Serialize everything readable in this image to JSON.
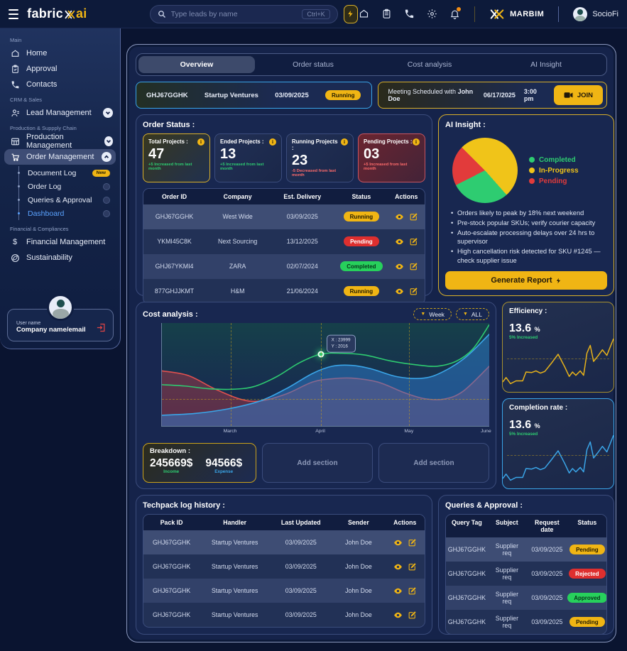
{
  "colors": {
    "yellow": "#f0b514",
    "green": "#2ecc71",
    "red": "#e23b3b",
    "blue": "#3aa5e8"
  },
  "topbar": {
    "logo_part1": "fabric",
    "logo_part2": "ai",
    "search": {
      "placeholder": "Type leads by name",
      "shortcut": "Ctrl+K"
    },
    "brand": "MARBIM",
    "account": "SocioFi"
  },
  "sidebar": {
    "section_labels": {
      "main": "Main",
      "crm": "CRM & Sales",
      "production": "Production & Suppply Chain",
      "financial": "Financial & Compliances"
    },
    "items": {
      "home": "Home",
      "approval": "Approval",
      "contacts": "Contacts",
      "lead": "Lead Management",
      "production": "Production Management",
      "order": "Order Management",
      "document_log": "Document Log",
      "document_badge": "New",
      "order_log": "Order Log",
      "queries": "Queries & Approval",
      "dashboard": "Dashboard",
      "financial": "Financial Management",
      "sustainability": "Sustainability"
    },
    "user_card": {
      "name": "User name",
      "company": "Company name/email"
    }
  },
  "tabs": [
    "Overview",
    "Order status",
    "Cost analysis",
    "AI Insight"
  ],
  "order_strip": {
    "order_id": "GHJ67GGHK",
    "company": "Startup Ventures",
    "date": "03/09/2025",
    "status": "Running",
    "status_color": "yellow"
  },
  "meeting": {
    "prefix": "Meeting Scheduled with",
    "person": "John Doe",
    "date": "06/17/2025",
    "time": "3:00 pm",
    "join_label": "JOIN"
  },
  "order_status": {
    "title": "Order Status :",
    "cards": [
      {
        "label": "Total Projects :",
        "value": "47",
        "note": "+5 Increased from last month",
        "note_color": "green",
        "style": "gold"
      },
      {
        "label": "Ended Projects :",
        "value": "13",
        "note": "+5 Increased from last month",
        "note_color": "green",
        "style": "plain"
      },
      {
        "label": "Running Projects :",
        "value": "23",
        "note": "-5 Decreased from last month",
        "note_color": "red",
        "style": "plain"
      },
      {
        "label": "Pending Projects :",
        "value": "03",
        "note": "+5 Increased from last month",
        "note_color": "red",
        "style": "danger"
      }
    ],
    "table": {
      "headers": [
        "Order ID",
        "Company",
        "Est. Delivery",
        "Status",
        "Actions"
      ],
      "rows": [
        {
          "order_id": "GHJ67GGHK",
          "company": "West Wide",
          "delivery": "03/09/2025",
          "status": "Running",
          "status_color": "yellow"
        },
        {
          "order_id": "YKMI45C8K",
          "company": "Next Sourcing",
          "delivery": "13/12/2025",
          "status": "Pending",
          "status_color": "red"
        },
        {
          "order_id": "GHJ67YKMI4",
          "company": "ZARA",
          "delivery": "02/07/2024",
          "status": "Completed",
          "status_color": "green"
        },
        {
          "order_id": "877GHJJKMT",
          "company": "H&M",
          "delivery": "21/06/2024",
          "status": "Running",
          "status_color": "yellow"
        }
      ]
    }
  },
  "ai_insight": {
    "title": "AI Insight :",
    "pie": {
      "type": "pie",
      "start_angle": 315,
      "slices": [
        {
          "label": "Completed",
          "value": 29,
          "color": "#2ecc71"
        },
        {
          "label": "In-Progress",
          "value": 51,
          "color": "#f0c419"
        },
        {
          "label": "Pending",
          "value": 20,
          "color": "#e23b3b"
        }
      ],
      "draw_order": [
        "In-Progress",
        "Completed",
        "Pending"
      ]
    },
    "bullets": [
      "Orders likely to peak by 18% next weekend",
      "Pre-stock popular SKUs; verify courier capacity",
      "Auto-escalate processing delays over 24 hrs to supervisor",
      "High cancellation risk detected for SKU #1245 — check supplier issue"
    ],
    "button_label": "Generate Report"
  },
  "cost_analysis": {
    "title": "Cost analysis :",
    "filters": [
      "Week",
      "ALL"
    ],
    "tooltip": {
      "line1": "X : 23999",
      "line2": "Y : 2016"
    },
    "chart_data": {
      "type": "area",
      "x_labels": [
        {
          "label": "March",
          "pos": 21
        },
        {
          "label": "April",
          "pos": 48.5
        },
        {
          "label": "May",
          "pos": 75.5
        },
        {
          "label": "June",
          "pos": 99
        }
      ],
      "y_ticks": [
        {
          "label": "25M $",
          "value": 25,
          "pos": 0
        },
        {
          "label": "15M $",
          "value": 15,
          "pos": 42
        },
        {
          "label": "10M $",
          "value": 10,
          "pos": 74
        },
        {
          "label": "7M $",
          "value": 7,
          "pos": 100
        }
      ],
      "grid_vlines": [
        21,
        48.5,
        75.5
      ],
      "grid_hline_value": 10,
      "marker": {
        "x": 48.5,
        "value": 17.8
      },
      "series": [
        {
          "name": "red",
          "color": "#e0504f",
          "fill": "rgba(190,60,70,0.42)",
          "points": [
            [
              0,
              14.3
            ],
            [
              8,
              13.6
            ],
            [
              16,
              11.6
            ],
            [
              24,
              10.0
            ],
            [
              30,
              9.8
            ],
            [
              38,
              10.8
            ],
            [
              46,
              12.6
            ],
            [
              52,
              13.1
            ],
            [
              58,
              13.2
            ],
            [
              66,
              12.6
            ],
            [
              74,
              11.0
            ],
            [
              80,
              10.1
            ],
            [
              86,
              10.0
            ],
            [
              92,
              11.2
            ],
            [
              100,
              15.0
            ]
          ]
        },
        {
          "name": "blue",
          "color": "#3aa5e8",
          "fill": "rgba(45,125,205,0.50)",
          "points": [
            [
              0,
              8.2
            ],
            [
              10,
              8.4
            ],
            [
              20,
              8.9
            ],
            [
              30,
              9.8
            ],
            [
              38,
              11.6
            ],
            [
              46,
              13.9
            ],
            [
              52,
              15.0
            ],
            [
              58,
              15.2
            ],
            [
              64,
              14.6
            ],
            [
              72,
              13.4
            ],
            [
              80,
              13.2
            ],
            [
              86,
              14.2
            ],
            [
              93,
              17.2
            ],
            [
              100,
              22.4
            ]
          ]
        },
        {
          "name": "green",
          "color": "#2ecc71",
          "fill": "none",
          "points": [
            [
              0,
              12.2
            ],
            [
              7,
              12.0
            ],
            [
              14,
              11.6
            ],
            [
              21,
              11.5
            ],
            [
              28,
              11.9
            ],
            [
              35,
              13.4
            ],
            [
              42,
              15.8
            ],
            [
              48.5,
              17.8
            ],
            [
              55,
              18.0
            ],
            [
              62,
              17.6
            ],
            [
              70,
              16.2
            ],
            [
              78,
              15.3
            ],
            [
              84,
              15.0
            ],
            [
              90,
              16.2
            ],
            [
              95,
              19.0
            ],
            [
              100,
              24.6
            ]
          ]
        }
      ]
    }
  },
  "efficiency": {
    "title": "Efficiency :",
    "value": "13.6",
    "unit": "%",
    "note": "5% Increased",
    "spark": {
      "type": "line",
      "color": "#e8b31a",
      "points": [
        [
          0,
          82
        ],
        [
          3,
          74
        ],
        [
          7,
          85
        ],
        [
          12,
          80
        ],
        [
          18,
          80
        ],
        [
          21,
          64
        ],
        [
          26,
          65
        ],
        [
          30,
          62
        ],
        [
          34,
          66
        ],
        [
          38,
          63
        ],
        [
          44,
          48
        ],
        [
          50,
          32
        ],
        [
          56,
          55
        ],
        [
          60,
          72
        ],
        [
          63,
          64
        ],
        [
          66,
          70
        ],
        [
          70,
          62
        ],
        [
          73,
          70
        ],
        [
          76,
          30
        ],
        [
          79,
          16
        ],
        [
          82,
          45
        ],
        [
          86,
          35
        ],
        [
          90,
          24
        ],
        [
          94,
          34
        ],
        [
          100,
          4
        ]
      ]
    }
  },
  "completion": {
    "title": "Completion rate :",
    "value": "13.6",
    "unit": "%",
    "note": "5% Increased",
    "spark": {
      "type": "line",
      "color": "#3aa5e8",
      "points": [
        [
          0,
          82
        ],
        [
          3,
          74
        ],
        [
          7,
          85
        ],
        [
          12,
          80
        ],
        [
          18,
          80
        ],
        [
          21,
          64
        ],
        [
          26,
          65
        ],
        [
          30,
          62
        ],
        [
          34,
          66
        ],
        [
          38,
          63
        ],
        [
          44,
          48
        ],
        [
          50,
          32
        ],
        [
          56,
          55
        ],
        [
          60,
          72
        ],
        [
          63,
          64
        ],
        [
          66,
          70
        ],
        [
          70,
          62
        ],
        [
          73,
          70
        ],
        [
          76,
          30
        ],
        [
          79,
          16
        ],
        [
          82,
          45
        ],
        [
          86,
          35
        ],
        [
          90,
          24
        ],
        [
          94,
          34
        ],
        [
          100,
          4
        ]
      ]
    }
  },
  "breakdown": {
    "title": "Breakdown :",
    "income_value": "245669$",
    "income_label": "Income",
    "expense_value": "94566$",
    "expense_label": "Expense"
  },
  "add_section_label": "Add section",
  "techpack": {
    "title": "Techpack log history :",
    "table": {
      "headers": [
        "Pack ID",
        "Handler",
        "Last Updated",
        "Sender",
        "Actions"
      ],
      "rows": [
        {
          "pack_id": "GHJ67GGHK",
          "handler": "Startup Ventures",
          "updated": "03/09/2025",
          "sender": "John Doe"
        },
        {
          "pack_id": "GHJ67GGHK",
          "handler": "Startup Ventures",
          "updated": "03/09/2025",
          "sender": "John Doe"
        },
        {
          "pack_id": "GHJ67GGHK",
          "handler": "Startup Ventures",
          "updated": "03/09/2025",
          "sender": "John Doe"
        },
        {
          "pack_id": "GHJ67GGHK",
          "handler": "Startup Ventures",
          "updated": "03/09/2025",
          "sender": "John Doe"
        }
      ]
    }
  },
  "queries": {
    "title": "Queries & Approval :",
    "table": {
      "headers": [
        "Query Tag",
        "Subject",
        "Request date",
        "Status"
      ],
      "rows": [
        {
          "tag": "GHJ67GGHK",
          "subject": "Supplier req",
          "date": "03/09/2025",
          "status": "Pending",
          "status_color": "yellow"
        },
        {
          "tag": "GHJ67GGHK",
          "subject": "Supplier req",
          "date": "03/09/2025",
          "status": "Rejected",
          "status_color": "red"
        },
        {
          "tag": "GHJ67GGHK",
          "subject": "Supplier req",
          "date": "03/09/2025",
          "status": "Approved",
          "status_color": "green"
        },
        {
          "tag": "GHJ67GGHK",
          "subject": "Supplier req",
          "date": "03/09/2025",
          "status": "Pending",
          "status_color": "yellow"
        }
      ]
    }
  }
}
